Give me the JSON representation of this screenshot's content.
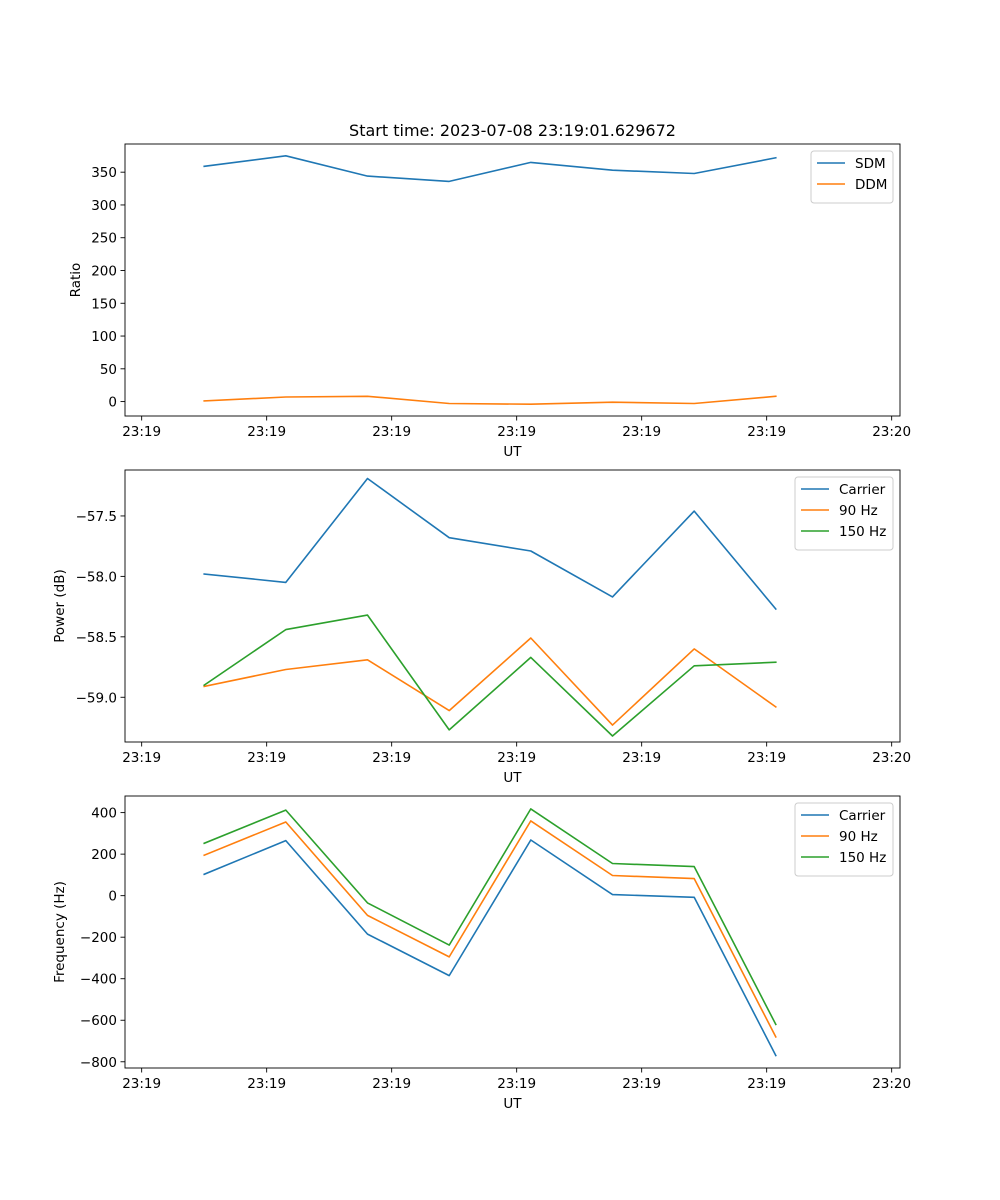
{
  "chart_data": [
    {
      "type": "line",
      "title": "Start time: 2023-07-08 23:19:01.629672",
      "xlabel": "UT",
      "ylabel": "Ratio",
      "ylim": [
        -22,
        393
      ],
      "xlim": [
        -0.2,
        9.1
      ],
      "xticks": [
        0,
        1.5,
        3,
        4.5,
        6,
        7.5,
        9
      ],
      "xtick_labels": [
        "23:19",
        "23:19",
        "23:19",
        "23:19",
        "23:19",
        "23:19",
        "23:20"
      ],
      "yticks": [
        0,
        50,
        100,
        150,
        200,
        250,
        300,
        350
      ],
      "ytick_labels": [
        "0",
        "50",
        "100",
        "150",
        "200",
        "250",
        "300",
        "350"
      ],
      "legend": "upper right",
      "x": [
        0.75,
        1.73,
        2.71,
        3.69,
        4.67,
        5.65,
        6.63,
        7.61
      ],
      "series": [
        {
          "name": "SDM",
          "color": "#1f77b4",
          "values": [
            359,
            375,
            344,
            336,
            365,
            353,
            348,
            372
          ]
        },
        {
          "name": "DDM",
          "color": "#ff7f0e",
          "values": [
            1,
            7,
            8,
            -3,
            -4,
            -1,
            -3,
            8
          ]
        }
      ]
    },
    {
      "type": "line",
      "title": "",
      "xlabel": "UT",
      "ylabel": "Power (dB)",
      "ylim": [
        -59.37,
        -57.12
      ],
      "xlim": [
        -0.2,
        9.1
      ],
      "xticks": [
        0,
        1.5,
        3,
        4.5,
        6,
        7.5,
        9
      ],
      "xtick_labels": [
        "23:19",
        "23:19",
        "23:19",
        "23:19",
        "23:19",
        "23:19",
        "23:20"
      ],
      "yticks": [
        -59.0,
        -58.5,
        -58.0,
        -57.5
      ],
      "ytick_labels": [
        "−59.0",
        "−58.5",
        "−58.0",
        "−57.5"
      ],
      "legend": "upper right",
      "x": [
        0.75,
        1.73,
        2.71,
        3.69,
        4.67,
        5.65,
        6.63,
        7.61
      ],
      "series": [
        {
          "name": "Carrier",
          "color": "#1f77b4",
          "values": [
            -57.98,
            -58.05,
            -57.19,
            -57.68,
            -57.79,
            -58.17,
            -57.46,
            -58.27
          ]
        },
        {
          "name": "90 Hz",
          "color": "#ff7f0e",
          "values": [
            -58.91,
            -58.77,
            -58.69,
            -59.11,
            -58.51,
            -59.23,
            -58.6,
            -59.08
          ]
        },
        {
          "name": "150 Hz",
          "color": "#2ca02c",
          "values": [
            -58.9,
            -58.44,
            -58.32,
            -59.27,
            -58.67,
            -59.32,
            -58.74,
            -58.71
          ]
        }
      ]
    },
    {
      "type": "line",
      "title": "",
      "xlabel": "UT",
      "ylabel": "Frequency (Hz)",
      "ylim": [
        -830,
        480
      ],
      "xlim": [
        -0.2,
        9.1
      ],
      "xticks": [
        0,
        1.5,
        3,
        4.5,
        6,
        7.5,
        9
      ],
      "xtick_labels": [
        "23:19",
        "23:19",
        "23:19",
        "23:19",
        "23:19",
        "23:19",
        "23:20"
      ],
      "yticks": [
        -800,
        -600,
        -400,
        -200,
        0,
        200,
        400
      ],
      "ytick_labels": [
        "−800",
        "−600",
        "−400",
        "−200",
        "0",
        "200",
        "400"
      ],
      "legend": "upper right",
      "x": [
        0.75,
        1.73,
        2.71,
        3.69,
        4.67,
        5.65,
        6.63,
        7.61
      ],
      "series": [
        {
          "name": "Carrier",
          "color": "#1f77b4",
          "values": [
            103,
            265,
            -185,
            -385,
            268,
            5,
            -8,
            -770
          ]
        },
        {
          "name": "90 Hz",
          "color": "#ff7f0e",
          "values": [
            195,
            355,
            -95,
            -295,
            360,
            97,
            82,
            -680
          ]
        },
        {
          "name": "150 Hz",
          "color": "#2ca02c",
          "values": [
            252,
            412,
            -35,
            -238,
            418,
            155,
            140,
            -620
          ]
        }
      ]
    }
  ]
}
